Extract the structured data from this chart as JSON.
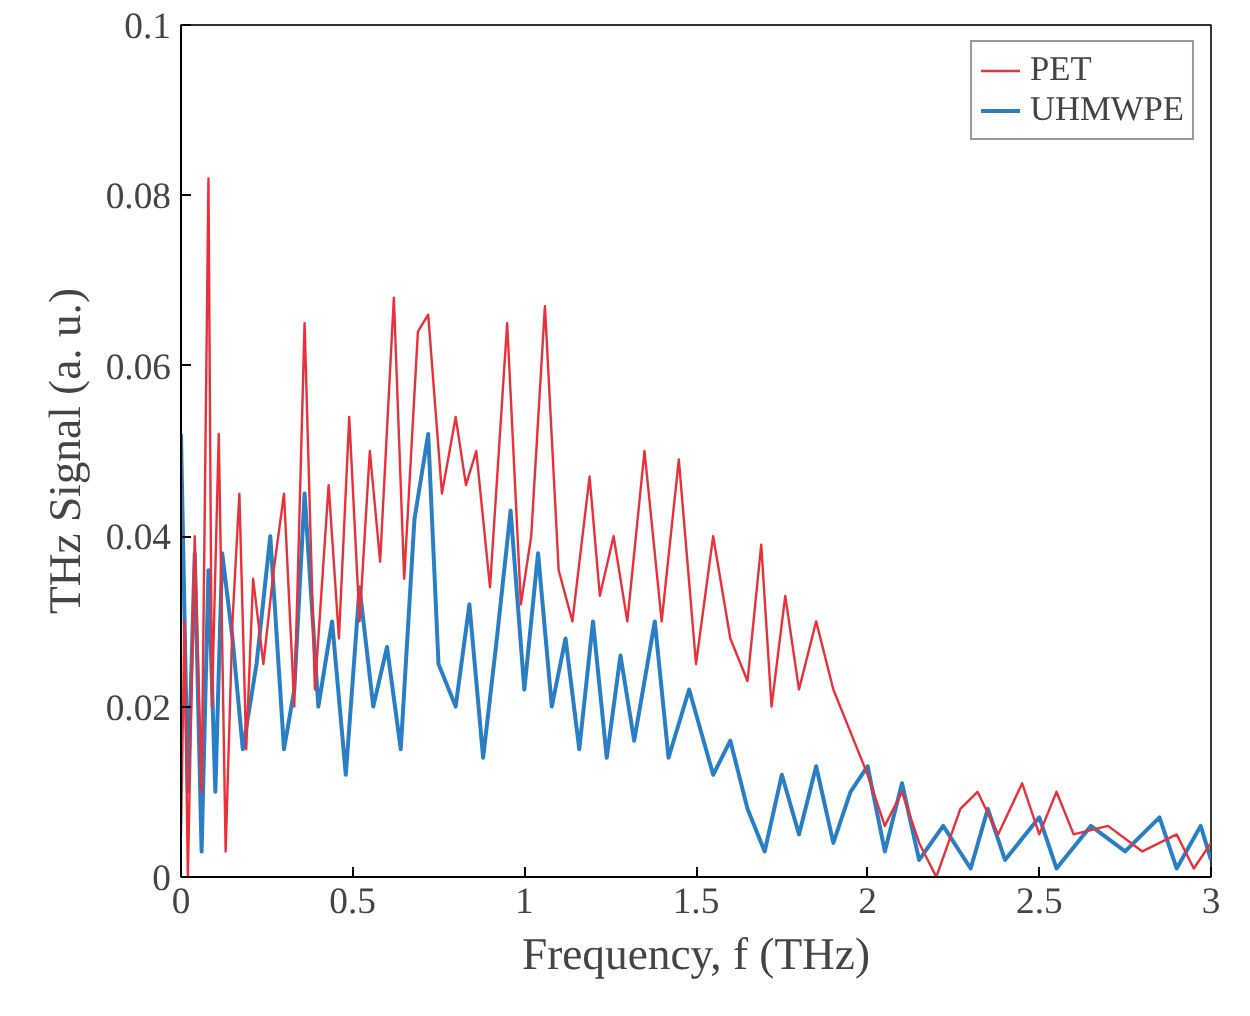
{
  "chart_data": {
    "type": "line",
    "xlabel": "Frequency, f (THz)",
    "ylabel": "THz Signal (a. u.)",
    "xlim": [
      0,
      3
    ],
    "ylim": [
      0,
      0.1
    ],
    "xticks": [
      0,
      0.5,
      1,
      1.5,
      2,
      2.5,
      3
    ],
    "yticks": [
      0,
      0.02,
      0.04,
      0.06,
      0.08,
      0.1
    ],
    "grid": false,
    "legend": "top right",
    "series": [
      {
        "name": "PET",
        "color": "#e8313a",
        "x": [
          0,
          0.01,
          0.02,
          0.04,
          0.06,
          0.08,
          0.09,
          0.11,
          0.13,
          0.15,
          0.17,
          0.19,
          0.21,
          0.24,
          0.27,
          0.3,
          0.33,
          0.36,
          0.39,
          0.43,
          0.46,
          0.49,
          0.52,
          0.55,
          0.58,
          0.62,
          0.65,
          0.69,
          0.72,
          0.76,
          0.8,
          0.83,
          0.86,
          0.9,
          0.95,
          0.99,
          1.02,
          1.06,
          1.1,
          1.14,
          1.19,
          1.22,
          1.26,
          1.3,
          1.35,
          1.4,
          1.45,
          1.5,
          1.55,
          1.6,
          1.65,
          1.69,
          1.72,
          1.76,
          1.8,
          1.85,
          1.9,
          1.95,
          2.0,
          2.05,
          2.1,
          2.15,
          2.2,
          2.27,
          2.32,
          2.38,
          2.45,
          2.5,
          2.55,
          2.6,
          2.7,
          2.8,
          2.9,
          2.95,
          3.0
        ],
        "values": [
          0.005,
          0.03,
          0.0,
          0.04,
          0.01,
          0.082,
          0.02,
          0.052,
          0.003,
          0.03,
          0.045,
          0.015,
          0.035,
          0.025,
          0.036,
          0.045,
          0.02,
          0.065,
          0.022,
          0.046,
          0.028,
          0.054,
          0.03,
          0.05,
          0.037,
          0.068,
          0.035,
          0.064,
          0.066,
          0.045,
          0.054,
          0.046,
          0.05,
          0.034,
          0.065,
          0.032,
          0.04,
          0.067,
          0.036,
          0.03,
          0.047,
          0.033,
          0.04,
          0.03,
          0.05,
          0.03,
          0.049,
          0.025,
          0.04,
          0.028,
          0.023,
          0.039,
          0.02,
          0.033,
          0.022,
          0.03,
          0.022,
          0.017,
          0.012,
          0.006,
          0.01,
          0.004,
          0.0,
          0.008,
          0.01,
          0.005,
          0.011,
          0.005,
          0.01,
          0.005,
          0.006,
          0.003,
          0.005,
          0.001,
          0.004
        ]
      },
      {
        "name": "UHMWPE",
        "color": "#2a7fc4",
        "x": [
          0,
          0.02,
          0.04,
          0.06,
          0.08,
          0.1,
          0.12,
          0.15,
          0.18,
          0.22,
          0.26,
          0.3,
          0.33,
          0.36,
          0.4,
          0.44,
          0.48,
          0.52,
          0.56,
          0.6,
          0.64,
          0.68,
          0.72,
          0.75,
          0.8,
          0.84,
          0.88,
          0.92,
          0.96,
          1.0,
          1.04,
          1.08,
          1.12,
          1.16,
          1.2,
          1.24,
          1.28,
          1.32,
          1.38,
          1.42,
          1.48,
          1.55,
          1.6,
          1.65,
          1.7,
          1.75,
          1.8,
          1.85,
          1.9,
          1.95,
          2.0,
          2.05,
          2.1,
          2.15,
          2.22,
          2.3,
          2.35,
          2.4,
          2.5,
          2.55,
          2.65,
          2.75,
          2.85,
          2.9,
          2.97,
          3.0
        ],
        "values": [
          0.052,
          0.01,
          0.038,
          0.003,
          0.036,
          0.01,
          0.038,
          0.028,
          0.015,
          0.025,
          0.04,
          0.015,
          0.022,
          0.045,
          0.02,
          0.03,
          0.012,
          0.034,
          0.02,
          0.027,
          0.015,
          0.042,
          0.052,
          0.025,
          0.02,
          0.032,
          0.014,
          0.028,
          0.043,
          0.022,
          0.038,
          0.02,
          0.028,
          0.015,
          0.03,
          0.014,
          0.026,
          0.016,
          0.03,
          0.014,
          0.022,
          0.012,
          0.016,
          0.008,
          0.003,
          0.012,
          0.005,
          0.013,
          0.004,
          0.01,
          0.013,
          0.003,
          0.011,
          0.002,
          0.006,
          0.001,
          0.008,
          0.002,
          0.007,
          0.001,
          0.006,
          0.003,
          0.007,
          0.001,
          0.006,
          0.002
        ]
      }
    ]
  }
}
